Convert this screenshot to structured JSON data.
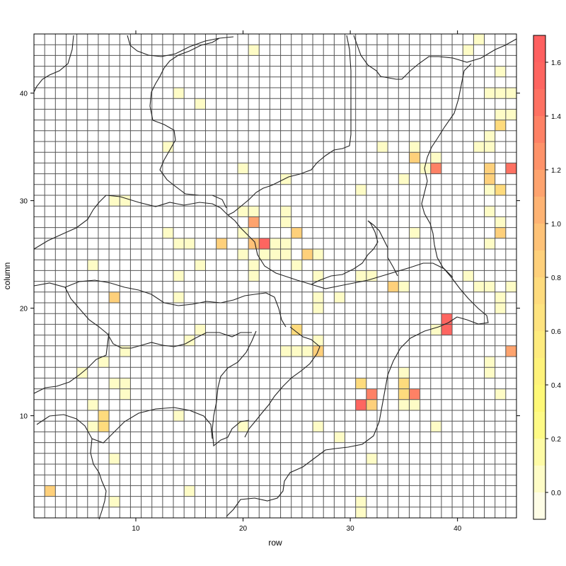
{
  "chart_data": {
    "type": "heatmap",
    "title": "",
    "xlabel": "row",
    "ylabel": "column",
    "xlim": [
      0.5,
      45.5
    ],
    "ylim": [
      0.5,
      45.5
    ],
    "x_ticks": [
      10,
      20,
      30,
      40
    ],
    "y_ticks": [
      10,
      20,
      30,
      40
    ],
    "grid": true,
    "colorbar": {
      "placement": "right",
      "ticks": [
        "0.0",
        "0.2",
        "0.4",
        "0.6",
        "0.8",
        "1.0",
        "1.2",
        "1.4",
        "1.6"
      ],
      "tick_values": [
        0.0,
        0.2,
        0.4,
        0.6,
        0.8,
        1.0,
        1.2,
        1.4,
        1.6
      ],
      "breaks": [
        -0.1,
        0.0,
        0.1,
        0.2,
        0.3,
        0.4,
        0.5,
        0.6,
        0.7,
        0.8,
        0.9,
        1.0,
        1.1,
        1.2,
        1.3,
        1.4,
        1.5,
        1.6,
        1.7
      ],
      "colors": [
        "#fefde6",
        "#fefcc6",
        "#fefba5",
        "#fefa86",
        "#fef877",
        "#fef27a",
        "#feeb7e",
        "#fee37f",
        "#fedb7d",
        "#fed07b",
        "#fec277",
        "#feb373",
        "#fea36e",
        "#fe9269",
        "#fe8165",
        "#fe7162",
        "#fe6560",
        "#fe6060"
      ]
    },
    "cells": [
      {
        "x": 42,
        "y": 45,
        "value": 0.0
      },
      {
        "x": 41,
        "y": 44,
        "value": 0.0
      },
      {
        "x": 21,
        "y": 44,
        "value": 0.0
      },
      {
        "x": 44,
        "y": 42,
        "value": 0.0
      },
      {
        "x": 14,
        "y": 40,
        "value": 0.0
      },
      {
        "x": 43,
        "y": 40,
        "value": 0.0
      },
      {
        "x": 44,
        "y": 40,
        "value": 0.0
      },
      {
        "x": 45,
        "y": 40,
        "value": 0.0
      },
      {
        "x": 16,
        "y": 39,
        "value": 0.0
      },
      {
        "x": 44,
        "y": 38,
        "value": 0.0
      },
      {
        "x": 45,
        "y": 38,
        "value": 0.0
      },
      {
        "x": 44,
        "y": 37,
        "value": 0.7
      },
      {
        "x": 43,
        "y": 36,
        "value": 0.0
      },
      {
        "x": 13,
        "y": 35,
        "value": 0.0
      },
      {
        "x": 33,
        "y": 35,
        "value": 0.0
      },
      {
        "x": 36,
        "y": 35,
        "value": 0.0
      },
      {
        "x": 42,
        "y": 35,
        "value": 0.0
      },
      {
        "x": 43,
        "y": 35,
        "value": 0.0
      },
      {
        "x": 36,
        "y": 34,
        "value": 0.8
      },
      {
        "x": 38,
        "y": 34,
        "value": 0.0
      },
      {
        "x": 43,
        "y": 33,
        "value": 0.8
      },
      {
        "x": 45,
        "y": 33,
        "value": 1.4
      },
      {
        "x": 37,
        "y": 33,
        "value": 0.0
      },
      {
        "x": 38,
        "y": 33,
        "value": 1.3
      },
      {
        "x": 20,
        "y": 33,
        "value": 0.0
      },
      {
        "x": 24,
        "y": 32,
        "value": 0.0
      },
      {
        "x": 35,
        "y": 32,
        "value": 0.0
      },
      {
        "x": 43,
        "y": 32,
        "value": 0.8
      },
      {
        "x": 31,
        "y": 31,
        "value": 0.0
      },
      {
        "x": 43,
        "y": 31,
        "value": 0.0
      },
      {
        "x": 44,
        "y": 31,
        "value": 0.7
      },
      {
        "x": 8,
        "y": 30,
        "value": 0.0
      },
      {
        "x": 9,
        "y": 30,
        "value": 0.0
      },
      {
        "x": 20,
        "y": 29,
        "value": 0.0
      },
      {
        "x": 21,
        "y": 29,
        "value": 0.0
      },
      {
        "x": 24,
        "y": 29,
        "value": 0.0
      },
      {
        "x": 43,
        "y": 29,
        "value": 0.0
      },
      {
        "x": 21,
        "y": 28,
        "value": 1.1
      },
      {
        "x": 24,
        "y": 28,
        "value": 0.0
      },
      {
        "x": 44,
        "y": 28,
        "value": 0.0
      },
      {
        "x": 13,
        "y": 27,
        "value": 0.0
      },
      {
        "x": 20,
        "y": 27,
        "value": 0.0
      },
      {
        "x": 25,
        "y": 27,
        "value": 0.8
      },
      {
        "x": 36,
        "y": 27,
        "value": 0.0
      },
      {
        "x": 44,
        "y": 27,
        "value": 0.8
      },
      {
        "x": 14,
        "y": 26,
        "value": 0.0
      },
      {
        "x": 15,
        "y": 26,
        "value": 0.0
      },
      {
        "x": 18,
        "y": 26,
        "value": 0.8
      },
      {
        "x": 21,
        "y": 26,
        "value": 0.9
      },
      {
        "x": 22,
        "y": 26,
        "value": 1.5
      },
      {
        "x": 23,
        "y": 26,
        "value": 0.0
      },
      {
        "x": 24,
        "y": 26,
        "value": 0.0
      },
      {
        "x": 43,
        "y": 26,
        "value": 0.0
      },
      {
        "x": 20,
        "y": 25,
        "value": 0.0
      },
      {
        "x": 22,
        "y": 25,
        "value": 0.0
      },
      {
        "x": 23,
        "y": 25,
        "value": 0.0
      },
      {
        "x": 24,
        "y": 25,
        "value": 0.0
      },
      {
        "x": 26,
        "y": 25,
        "value": 0.8
      },
      {
        "x": 27,
        "y": 25,
        "value": 0.0
      },
      {
        "x": 6,
        "y": 24,
        "value": 0.0
      },
      {
        "x": 16,
        "y": 24,
        "value": 0.0
      },
      {
        "x": 21,
        "y": 24,
        "value": 0.0
      },
      {
        "x": 25,
        "y": 24,
        "value": 0.0
      },
      {
        "x": 14,
        "y": 23,
        "value": 0.0
      },
      {
        "x": 21,
        "y": 23,
        "value": 0.0
      },
      {
        "x": 27,
        "y": 23,
        "value": 0.0
      },
      {
        "x": 31,
        "y": 23,
        "value": 0.0
      },
      {
        "x": 32,
        "y": 23,
        "value": 0.0
      },
      {
        "x": 41,
        "y": 23,
        "value": 0.0
      },
      {
        "x": 34,
        "y": 22,
        "value": 0.8
      },
      {
        "x": 35,
        "y": 22,
        "value": 0.0
      },
      {
        "x": 42,
        "y": 22,
        "value": 0.0
      },
      {
        "x": 43,
        "y": 22,
        "value": 0.0
      },
      {
        "x": 45,
        "y": 22,
        "value": 0.0
      },
      {
        "x": 8,
        "y": 21,
        "value": 0.8
      },
      {
        "x": 14,
        "y": 21,
        "value": 0.0
      },
      {
        "x": 27,
        "y": 21,
        "value": 0.0
      },
      {
        "x": 29,
        "y": 21,
        "value": 0.0
      },
      {
        "x": 44,
        "y": 21,
        "value": 0.0
      },
      {
        "x": 27,
        "y": 20,
        "value": 0.0
      },
      {
        "x": 44,
        "y": 20,
        "value": 0.0
      },
      {
        "x": 39,
        "y": 19,
        "value": 1.5
      },
      {
        "x": 38,
        "y": 18,
        "value": 0.0
      },
      {
        "x": 39,
        "y": 18,
        "value": 1.5
      },
      {
        "x": 16,
        "y": 18,
        "value": 0.0
      },
      {
        "x": 25,
        "y": 18,
        "value": 0.7
      },
      {
        "x": 27,
        "y": 17,
        "value": 0.0
      },
      {
        "x": 15,
        "y": 17,
        "value": 0.0
      },
      {
        "x": 24,
        "y": 16,
        "value": 0.0
      },
      {
        "x": 25,
        "y": 16,
        "value": 0.0
      },
      {
        "x": 26,
        "y": 16,
        "value": 0.0
      },
      {
        "x": 27,
        "y": 16,
        "value": 0.8
      },
      {
        "x": 9,
        "y": 16,
        "value": 0.0
      },
      {
        "x": 45,
        "y": 16,
        "value": 1.1
      },
      {
        "x": 7,
        "y": 15,
        "value": 0.0
      },
      {
        "x": 43,
        "y": 15,
        "value": 0.0
      },
      {
        "x": 43,
        "y": 14,
        "value": 0.0
      },
      {
        "x": 5,
        "y": 14,
        "value": 0.0
      },
      {
        "x": 35,
        "y": 14,
        "value": 0.0
      },
      {
        "x": 8,
        "y": 13,
        "value": 0.0
      },
      {
        "x": 9,
        "y": 13,
        "value": 0.0
      },
      {
        "x": 31,
        "y": 13,
        "value": 0.7
      },
      {
        "x": 35,
        "y": 13,
        "value": 0.7
      },
      {
        "x": 9,
        "y": 12,
        "value": 0.0
      },
      {
        "x": 32,
        "y": 12,
        "value": 1.3
      },
      {
        "x": 35,
        "y": 12,
        "value": 0.7
      },
      {
        "x": 36,
        "y": 12,
        "value": 1.3
      },
      {
        "x": 44,
        "y": 12,
        "value": 0.0
      },
      {
        "x": 6,
        "y": 11,
        "value": 0.0
      },
      {
        "x": 31,
        "y": 11,
        "value": 1.5
      },
      {
        "x": 32,
        "y": 11,
        "value": 0.8
      },
      {
        "x": 35,
        "y": 11,
        "value": 0.0
      },
      {
        "x": 36,
        "y": 11,
        "value": 0.0
      },
      {
        "x": 7,
        "y": 10,
        "value": 0.7
      },
      {
        "x": 14,
        "y": 10,
        "value": 0.0
      },
      {
        "x": 6,
        "y": 9,
        "value": 0.0
      },
      {
        "x": 7,
        "y": 9,
        "value": 0.7
      },
      {
        "x": 20,
        "y": 9,
        "value": 0.0
      },
      {
        "x": 27,
        "y": 9,
        "value": 0.0
      },
      {
        "x": 38,
        "y": 9,
        "value": 0.0
      },
      {
        "x": 29,
        "y": 8,
        "value": 0.0
      },
      {
        "x": 8,
        "y": 6,
        "value": 0.0
      },
      {
        "x": 32,
        "y": 6,
        "value": 0.0
      },
      {
        "x": 2,
        "y": 3,
        "value": 0.8
      },
      {
        "x": 15,
        "y": 3,
        "value": 0.0
      },
      {
        "x": 8,
        "y": 2,
        "value": 0.0
      },
      {
        "x": 31,
        "y": 2,
        "value": 0.0
      },
      {
        "x": 31,
        "y": 1,
        "value": 0.0
      }
    ]
  }
}
